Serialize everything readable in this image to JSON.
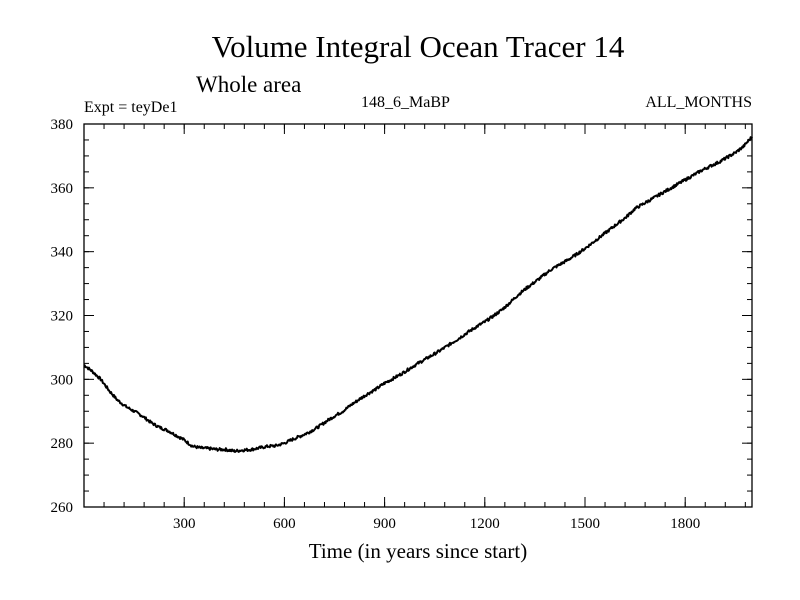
{
  "chart_data": {
    "type": "line",
    "title": "Volume Integral Ocean Tracer 14",
    "subtitle": "Whole area",
    "experiment_label": "Expt = teyDe1",
    "run_label": "148_6_MaBP",
    "period_label": "ALL_MONTHS",
    "xlabel": "Time (in years since start)",
    "ylabel": "",
    "xlim": [
      0,
      2000
    ],
    "ylim": [
      260,
      380
    ],
    "x_ticks": [
      300,
      600,
      900,
      1200,
      1500,
      1800
    ],
    "x_tick_labels": [
      "300",
      "600",
      "900",
      "1200",
      "1500",
      "1800"
    ],
    "y_ticks": [
      260,
      280,
      300,
      320,
      340,
      360,
      380
    ],
    "y_tick_labels": [
      "260",
      "280",
      "300",
      "320",
      "340",
      "360",
      "380"
    ],
    "x_minor_step": 60,
    "y_minor_step": 5,
    "grid": false,
    "series": [
      {
        "name": "Volume Integral Ocean Tracer 14",
        "color": "#000000",
        "x": [
          0,
          25,
          50,
          75,
          100,
          125,
          150,
          175,
          200,
          225,
          250,
          275,
          300,
          325,
          350,
          375,
          400,
          425,
          450,
          475,
          500,
          525,
          550,
          575,
          600,
          625,
          650,
          675,
          700,
          725,
          750,
          775,
          800,
          825,
          850,
          875,
          900,
          925,
          950,
          975,
          1000,
          1025,
          1050,
          1075,
          1100,
          1125,
          1150,
          1175,
          1200,
          1225,
          1250,
          1275,
          1300,
          1325,
          1350,
          1375,
          1400,
          1425,
          1450,
          1475,
          1500,
          1525,
          1550,
          1575,
          1600,
          1625,
          1650,
          1675,
          1700,
          1725,
          1750,
          1775,
          1800,
          1825,
          1850,
          1875,
          1900,
          1925,
          1950,
          1975,
          2000
        ],
        "values": [
          304.5,
          302.5,
          300,
          296.5,
          293.5,
          291.5,
          290,
          288.5,
          286.5,
          285,
          284,
          282.5,
          281,
          279,
          278.5,
          278.3,
          278,
          278,
          277.5,
          277.8,
          278,
          278.5,
          279,
          279.2,
          280,
          281.2,
          282.3,
          283.5,
          285,
          286.8,
          288.5,
          290,
          292,
          293.8,
          295.5,
          297,
          298.8,
          300.2,
          301.7,
          303.4,
          305,
          306.5,
          308,
          309.6,
          311.3,
          313,
          314.8,
          316.5,
          318,
          319.8,
          321.7,
          324,
          326.5,
          328.6,
          330.5,
          332.5,
          334.5,
          336,
          337.5,
          339.2,
          341,
          343,
          345,
          347,
          349,
          351,
          353.5,
          355,
          356.5,
          358,
          359.5,
          361,
          362.5,
          364,
          365.5,
          366.8,
          368,
          369.5,
          371,
          373,
          376
        ]
      }
    ]
  }
}
